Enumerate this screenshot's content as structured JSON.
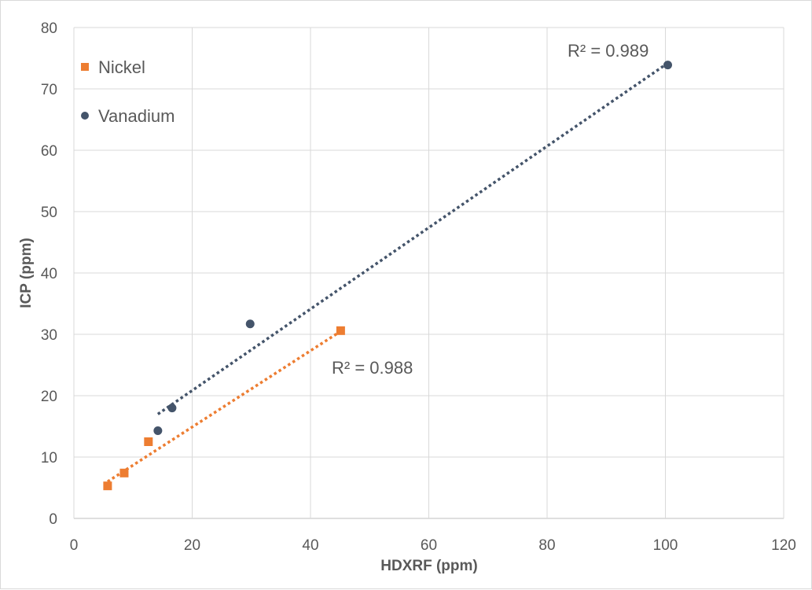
{
  "chart_data": {
    "type": "scatter",
    "title": "",
    "xlabel": "HDXRF (ppm)",
    "ylabel": "ICP (ppm)",
    "xlim": [
      0,
      120
    ],
    "ylim": [
      0,
      80
    ],
    "x_ticks": [
      0,
      20,
      40,
      60,
      80,
      100,
      120
    ],
    "y_ticks": [
      0,
      10,
      20,
      30,
      40,
      50,
      60,
      70,
      80
    ],
    "grid": true,
    "legend_position": "top-left",
    "series": [
      {
        "name": "Nickel",
        "marker": "square",
        "color": "#ED7D31",
        "points": [
          {
            "x": 5.7,
            "y": 5.3
          },
          {
            "x": 8.5,
            "y": 7.4
          },
          {
            "x": 12.6,
            "y": 12.5
          },
          {
            "x": 45.1,
            "y": 30.6
          }
        ],
        "trendline": {
          "x_start": 5.7,
          "y_start": 6.0,
          "x_end": 45.1,
          "y_end": 30.5,
          "style": "dotted"
        },
        "r2_label": "R² = 0.988"
      },
      {
        "name": "Vanadium",
        "marker": "circle",
        "color": "#44546A",
        "points": [
          {
            "x": 14.2,
            "y": 14.3
          },
          {
            "x": 16.6,
            "y": 18.0
          },
          {
            "x": 29.8,
            "y": 31.7
          },
          {
            "x": 100.4,
            "y": 73.9
          }
        ],
        "trendline": {
          "x_start": 14.2,
          "y_start": 17.0,
          "x_end": 100.4,
          "y_end": 74.2,
          "style": "dotted"
        },
        "r2_label": "R² = 0.989"
      }
    ]
  }
}
